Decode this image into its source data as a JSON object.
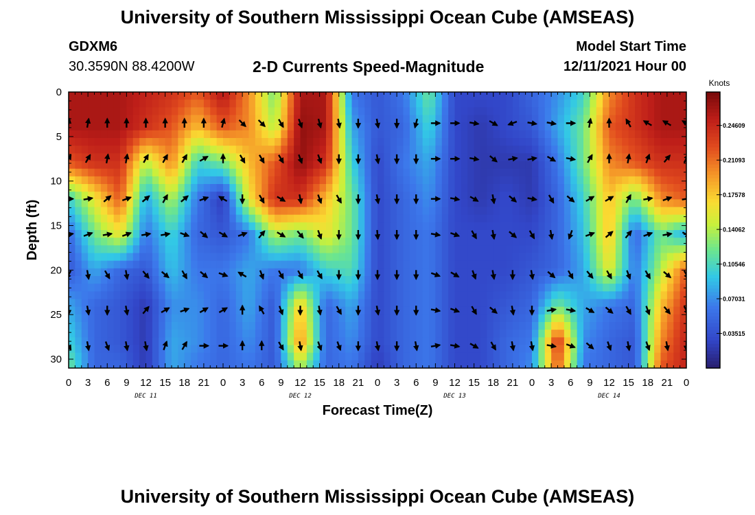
{
  "title": "University of Southern Mississippi Ocean Cube (AMSEAS)",
  "footer_title": "University of Southern Mississippi Ocean Cube (AMSEAS)",
  "station": "GDXM6",
  "coordinates": "30.3590N  88.4200W",
  "subtitle": "2-D Currents Speed-Magnitude",
  "model_start_label": "Model Start Time",
  "model_start_value": "12/11/2021 Hour 00",
  "chart_data": {
    "type": "heatmap",
    "title": "2-D Currents Speed-Magnitude",
    "xlabel": "Forecast Time(Z)",
    "ylabel": "Depth (ft)",
    "xlim": [
      0,
      96
    ],
    "ylim": [
      31,
      0
    ],
    "x_ticks": [
      0,
      3,
      6,
      9,
      12,
      15,
      18,
      21,
      24,
      27,
      30,
      33,
      36,
      39,
      42,
      45,
      48,
      51,
      54,
      57,
      60,
      63,
      66,
      69,
      72,
      75,
      78,
      81,
      84,
      87,
      90,
      93,
      96
    ],
    "x_tick_labels": [
      "0",
      "3",
      "6",
      "9",
      "12",
      "15",
      "18",
      "21",
      "0",
      "3",
      "6",
      "9",
      "12",
      "15",
      "18",
      "21",
      "0",
      "3",
      "6",
      "9",
      "12",
      "15",
      "18",
      "21",
      "0",
      "3",
      "6",
      "9",
      "12",
      "15",
      "18",
      "21",
      "0"
    ],
    "y_ticks": [
      0,
      5,
      10,
      15,
      20,
      25,
      30
    ],
    "y_tick_labels": [
      "0",
      "5",
      "10",
      "15",
      "20",
      "25",
      "30"
    ],
    "date_labels": [
      {
        "x": 12,
        "label": "DEC 11"
      },
      {
        "x": 36,
        "label": "DEC 12"
      },
      {
        "x": 60,
        "label": "DEC 13"
      },
      {
        "x": 84,
        "label": "DEC 14"
      }
    ],
    "colorbar": {
      "label": "Knots",
      "min": 0.0,
      "max": 0.28,
      "ticks": [
        0.24609,
        0.21093,
        0.17578,
        0.14062,
        0.10546,
        0.07031,
        0.03515
      ],
      "tick_labels": [
        "0.24609",
        "0.21093",
        "0.17578",
        "0.14062",
        "0.10546",
        "0.07031",
        "0.03515"
      ]
    },
    "depths_ft": [
      0,
      4,
      8,
      12,
      16,
      20,
      24,
      28,
      31
    ],
    "times_h": [
      0,
      4,
      8,
      12,
      16,
      20,
      24,
      28,
      32,
      36,
      40,
      44,
      48,
      52,
      56,
      60,
      64,
      68,
      72,
      76,
      80,
      84,
      88,
      92,
      96
    ],
    "speed_knots": [
      [
        0.26,
        0.26,
        0.26,
        0.25,
        0.24,
        0.22,
        0.26,
        0.2,
        0.12,
        0.26,
        0.26,
        0.06,
        0.04,
        0.06,
        0.12,
        0.03,
        0.03,
        0.03,
        0.05,
        0.07,
        0.1,
        0.2,
        0.24,
        0.26,
        0.26
      ],
      [
        0.26,
        0.26,
        0.26,
        0.24,
        0.22,
        0.18,
        0.22,
        0.2,
        0.14,
        0.27,
        0.26,
        0.08,
        0.04,
        0.05,
        0.1,
        0.03,
        0.02,
        0.03,
        0.04,
        0.08,
        0.12,
        0.22,
        0.24,
        0.26,
        0.26
      ],
      [
        0.22,
        0.24,
        0.24,
        0.14,
        0.2,
        0.1,
        0.12,
        0.18,
        0.22,
        0.27,
        0.24,
        0.1,
        0.03,
        0.06,
        0.08,
        0.03,
        0.02,
        0.02,
        0.02,
        0.06,
        0.12,
        0.2,
        0.22,
        0.24,
        0.24
      ],
      [
        0.1,
        0.16,
        0.22,
        0.08,
        0.14,
        0.06,
        0.02,
        0.16,
        0.24,
        0.24,
        0.18,
        0.12,
        0.03,
        0.05,
        0.07,
        0.03,
        0.02,
        0.03,
        0.02,
        0.05,
        0.1,
        0.18,
        0.12,
        0.2,
        0.22
      ],
      [
        0.05,
        0.12,
        0.16,
        0.06,
        0.1,
        0.05,
        0.04,
        0.06,
        0.14,
        0.12,
        0.16,
        0.12,
        0.03,
        0.05,
        0.06,
        0.03,
        0.03,
        0.03,
        0.03,
        0.05,
        0.09,
        0.18,
        0.05,
        0.12,
        0.08
      ],
      [
        0.04,
        0.08,
        0.05,
        0.04,
        0.09,
        0.06,
        0.06,
        0.08,
        0.06,
        0.06,
        0.1,
        0.11,
        0.03,
        0.05,
        0.06,
        0.03,
        0.03,
        0.03,
        0.04,
        0.05,
        0.08,
        0.16,
        0.06,
        0.14,
        0.22
      ],
      [
        0.08,
        0.05,
        0.04,
        0.02,
        0.07,
        0.07,
        0.05,
        0.08,
        0.04,
        0.18,
        0.05,
        0.08,
        0.03,
        0.05,
        0.06,
        0.03,
        0.03,
        0.04,
        0.05,
        0.12,
        0.08,
        0.06,
        0.05,
        0.18,
        0.24
      ],
      [
        0.1,
        0.05,
        0.04,
        0.02,
        0.08,
        0.07,
        0.05,
        0.07,
        0.04,
        0.2,
        0.05,
        0.07,
        0.03,
        0.05,
        0.06,
        0.03,
        0.03,
        0.05,
        0.06,
        0.24,
        0.07,
        0.05,
        0.04,
        0.2,
        0.25
      ],
      [
        0.12,
        0.05,
        0.05,
        0.02,
        0.08,
        0.06,
        0.05,
        0.06,
        0.04,
        0.14,
        0.05,
        0.06,
        0.02,
        0.05,
        0.06,
        0.03,
        0.03,
        0.05,
        0.07,
        0.22,
        0.06,
        0.05,
        0.04,
        0.22,
        0.25
      ]
    ],
    "arrow_times_h": [
      0,
      3,
      6,
      9,
      12,
      15,
      18,
      21,
      24,
      27,
      30,
      33,
      36,
      39,
      42,
      45,
      48,
      51,
      54,
      57,
      60,
      63,
      66,
      69,
      72,
      75,
      78,
      81,
      84,
      87,
      90,
      93,
      96
    ],
    "arrow_depths_ft": [
      3.5,
      7.5,
      12,
      16,
      20.5,
      24.5,
      28.5
    ],
    "arrow_directions_deg": [
      [
        10,
        10,
        0,
        0,
        0,
        0,
        0,
        0,
        15,
        135,
        135,
        150,
        160,
        165,
        170,
        180,
        170,
        180,
        195,
        90,
        90,
        100,
        120,
        250,
        100,
        100,
        90,
        10,
        0,
        330,
        300,
        300,
        300
      ],
      [
        30,
        30,
        10,
        10,
        30,
        30,
        30,
        60,
        0,
        150,
        150,
        150,
        160,
        160,
        180,
        180,
        170,
        180,
        180,
        90,
        90,
        100,
        130,
        80,
        80,
        120,
        100,
        30,
        0,
        10,
        20,
        40,
        30
      ],
      [
        90,
        80,
        50,
        70,
        50,
        30,
        50,
        70,
        300,
        180,
        150,
        120,
        170,
        160,
        150,
        180,
        170,
        180,
        180,
        90,
        100,
        120,
        170,
        130,
        100,
        150,
        130,
        60,
        60,
        30,
        80,
        70,
        80
      ],
      [
        80,
        70,
        80,
        70,
        80,
        80,
        110,
        130,
        120,
        70,
        40,
        120,
        140,
        160,
        180,
        180,
        175,
        180,
        180,
        100,
        110,
        150,
        170,
        130,
        150,
        170,
        200,
        70,
        50,
        40,
        70,
        80,
        120
      ],
      [
        210,
        170,
        150,
        170,
        140,
        130,
        150,
        130,
        110,
        300,
        160,
        150,
        150,
        150,
        180,
        180,
        180,
        180,
        180,
        110,
        120,
        160,
        170,
        180,
        170,
        130,
        150,
        140,
        150,
        160,
        150,
        130,
        150
      ],
      [
        180,
        170,
        180,
        170,
        40,
        60,
        70,
        60,
        60,
        0,
        330,
        160,
        180,
        170,
        150,
        180,
        170,
        180,
        180,
        100,
        110,
        150,
        130,
        170,
        180,
        80,
        100,
        120,
        130,
        150,
        160,
        140,
        150
      ],
      [
        150,
        170,
        160,
        170,
        170,
        20,
        30,
        90,
        90,
        0,
        0,
        150,
        170,
        160,
        160,
        180,
        170,
        180,
        170,
        80,
        100,
        120,
        150,
        170,
        170,
        100,
        110,
        130,
        160,
        170,
        160,
        170,
        180
      ]
    ]
  }
}
